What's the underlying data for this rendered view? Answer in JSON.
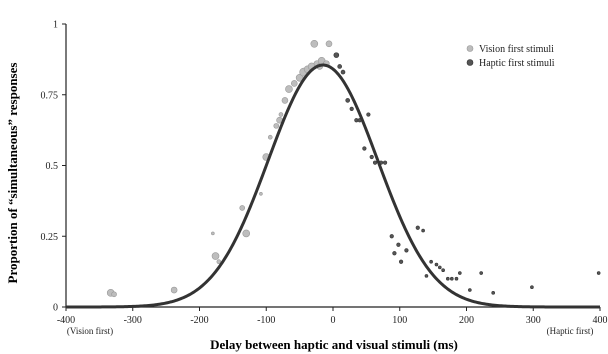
{
  "chart_data": {
    "type": "scatter",
    "xlabel": "Delay between haptic and visual stimuli (ms)",
    "ylabel": "Proportion of “simultaneous” responses",
    "xlim": [
      -400,
      400
    ],
    "ylim": [
      0,
      1
    ],
    "x_ticks": [
      -400,
      -300,
      -200,
      -100,
      0,
      100,
      200,
      300,
      400
    ],
    "y_ticks": [
      {
        "value": 0,
        "label": "0"
      },
      {
        "value": 0.25,
        "label": "0.25"
      },
      {
        "value": 0.5,
        "label": "0.5"
      },
      {
        "value": 0.75,
        "label": "0.75"
      },
      {
        "value": 1,
        "label": "1"
      }
    ],
    "x_sublabels": [
      {
        "x": -400,
        "text": "(Vision first)"
      },
      {
        "x": 400,
        "text": "(Haptic first)"
      }
    ],
    "legend_position": "top-right",
    "grid": false,
    "series": [
      {
        "name": "Vision first stimuli",
        "color": "#bdbdbd",
        "stroke": "#999999",
        "points": [
          {
            "x": -333,
            "y": 0.05,
            "size": 3.5
          },
          {
            "x": -328,
            "y": 0.045,
            "size": 2.5
          },
          {
            "x": -238,
            "y": 0.06,
            "size": 3
          },
          {
            "x": -180,
            "y": 0.26,
            "size": 1.5
          },
          {
            "x": -176,
            "y": 0.18,
            "size": 3.5
          },
          {
            "x": -171,
            "y": 0.16,
            "size": 2
          },
          {
            "x": -136,
            "y": 0.35,
            "size": 2.5
          },
          {
            "x": -130,
            "y": 0.26,
            "size": 3.5
          },
          {
            "x": -108,
            "y": 0.4,
            "size": 1.5
          },
          {
            "x": -100,
            "y": 0.53,
            "size": 3.5
          },
          {
            "x": -94,
            "y": 0.6,
            "size": 2
          },
          {
            "x": -85,
            "y": 0.64,
            "size": 2.5
          },
          {
            "x": -80,
            "y": 0.66,
            "size": 3
          },
          {
            "x": -78,
            "y": 0.68,
            "size": 2
          },
          {
            "x": -72,
            "y": 0.73,
            "size": 3
          },
          {
            "x": -66,
            "y": 0.77,
            "size": 3.5
          },
          {
            "x": -58,
            "y": 0.79,
            "size": 3
          },
          {
            "x": -50,
            "y": 0.81,
            "size": 3.5
          },
          {
            "x": -44,
            "y": 0.83,
            "size": 4
          },
          {
            "x": -38,
            "y": 0.84,
            "size": 3.5
          },
          {
            "x": -32,
            "y": 0.85,
            "size": 3.5
          },
          {
            "x": -28,
            "y": 0.93,
            "size": 3.5
          },
          {
            "x": -24,
            "y": 0.86,
            "size": 3
          },
          {
            "x": -20,
            "y": 0.85,
            "size": 3
          },
          {
            "x": -17,
            "y": 0.87,
            "size": 3.5
          },
          {
            "x": -10,
            "y": 0.86,
            "size": 3
          },
          {
            "x": -6,
            "y": 0.93,
            "size": 3
          }
        ]
      },
      {
        "name": "Haptic first stimuli",
        "color": "#555555",
        "stroke": "#333333",
        "points": [
          {
            "x": 5,
            "y": 0.89,
            "size": 2.5
          },
          {
            "x": 10,
            "y": 0.85,
            "size": 2
          },
          {
            "x": 15,
            "y": 0.83,
            "size": 2
          },
          {
            "x": 22,
            "y": 0.73,
            "size": 2
          },
          {
            "x": 28,
            "y": 0.7,
            "size": 1.8
          },
          {
            "x": 35,
            "y": 0.66,
            "size": 1.8
          },
          {
            "x": 40,
            "y": 0.66,
            "size": 1.8
          },
          {
            "x": 47,
            "y": 0.56,
            "size": 1.8
          },
          {
            "x": 53,
            "y": 0.68,
            "size": 1.8
          },
          {
            "x": 58,
            "y": 0.53,
            "size": 1.8
          },
          {
            "x": 63,
            "y": 0.51,
            "size": 1.8
          },
          {
            "x": 72,
            "y": 0.51,
            "size": 1.8
          },
          {
            "x": 78,
            "y": 0.51,
            "size": 1.8
          },
          {
            "x": 88,
            "y": 0.25,
            "size": 1.8
          },
          {
            "x": 92,
            "y": 0.19,
            "size": 1.8
          },
          {
            "x": 98,
            "y": 0.22,
            "size": 1.8
          },
          {
            "x": 102,
            "y": 0.16,
            "size": 1.8
          },
          {
            "x": 110,
            "y": 0.2,
            "size": 1.8
          },
          {
            "x": 127,
            "y": 0.28,
            "size": 1.8
          },
          {
            "x": 135,
            "y": 0.27,
            "size": 1.5
          },
          {
            "x": 140,
            "y": 0.11,
            "size": 1.5
          },
          {
            "x": 147,
            "y": 0.16,
            "size": 1.5
          },
          {
            "x": 155,
            "y": 0.15,
            "size": 1.5
          },
          {
            "x": 160,
            "y": 0.14,
            "size": 1.5
          },
          {
            "x": 165,
            "y": 0.13,
            "size": 1.5
          },
          {
            "x": 172,
            "y": 0.1,
            "size": 1.5
          },
          {
            "x": 178,
            "y": 0.1,
            "size": 1.5
          },
          {
            "x": 185,
            "y": 0.1,
            "size": 1.5
          },
          {
            "x": 190,
            "y": 0.12,
            "size": 1.5
          },
          {
            "x": 205,
            "y": 0.06,
            "size": 1.5
          },
          {
            "x": 222,
            "y": 0.12,
            "size": 1.5
          },
          {
            "x": 240,
            "y": 0.05,
            "size": 1.5
          },
          {
            "x": 298,
            "y": 0.07,
            "size": 1.5
          },
          {
            "x": 398,
            "y": 0.12,
            "size": 1.5
          }
        ]
      }
    ],
    "fit_curve": {
      "type": "gaussian",
      "amplitude": 0.855,
      "mean": -15,
      "sd": 82,
      "color": "#333333"
    }
  }
}
